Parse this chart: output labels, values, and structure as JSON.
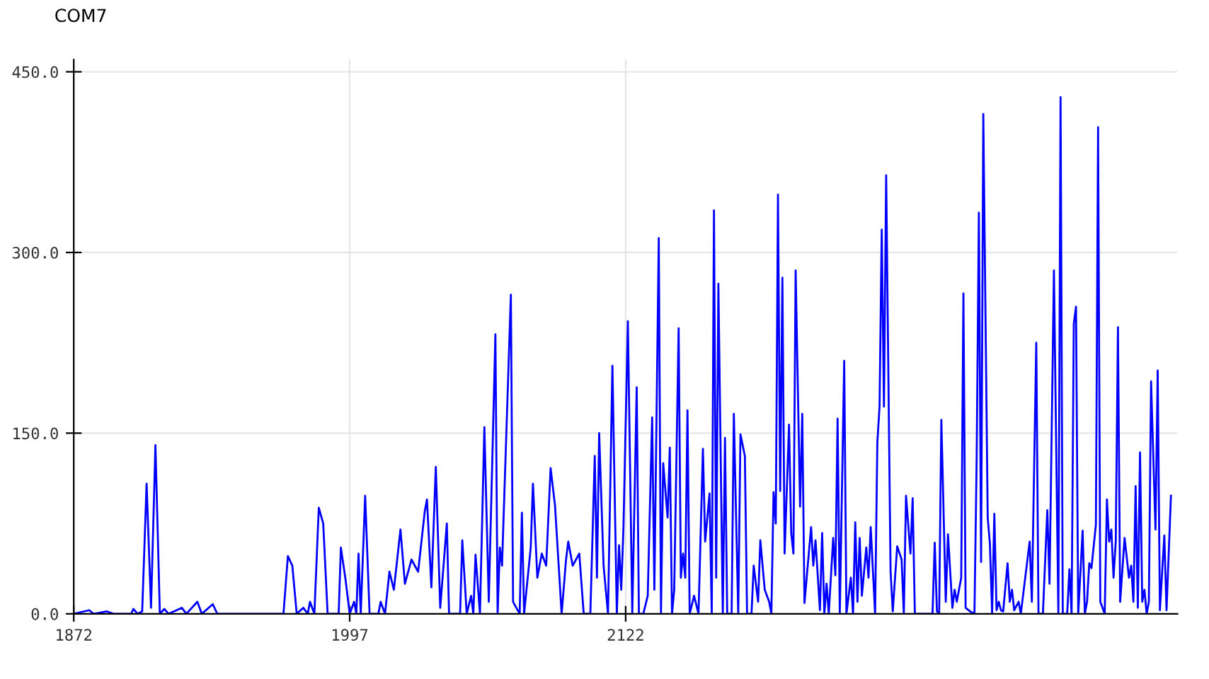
{
  "chart_data": {
    "type": "line",
    "title": "COM7",
    "xlim": [
      1872,
      2372
    ],
    "xticks": [
      1872,
      1997,
      2122
    ],
    "ylim": [
      0,
      460
    ],
    "yticks": [
      {
        "value": 0,
        "label": "0.0"
      },
      {
        "value": 150,
        "label": "150.0"
      },
      {
        "value": 300,
        "label": "300.0"
      },
      {
        "value": 450,
        "label": "450.0"
      }
    ],
    "grid": true,
    "marker": "none",
    "line_style": "solid",
    "series": [
      {
        "color": "#0000ff",
        "x": [
          1872,
          1879,
          1881,
          1887,
          1890,
          1898,
          1899,
          1901,
          1903,
          1905,
          1907,
          1909,
          1911,
          1913,
          1915,
          1921,
          1923,
          1928,
          1930,
          1935,
          1937,
          1967,
          1969,
          1971,
          1973,
          1976,
          1978,
          1979,
          1981,
          1983,
          1985,
          1987,
          1992,
          1993,
          1995,
          1997,
          1999,
          2000,
          2001,
          2002,
          2004,
          2006,
          2010,
          2011,
          2013,
          2015,
          2017,
          2020,
          2022,
          2025,
          2028,
          2031,
          2032,
          2034,
          2036,
          2038,
          2041,
          2042,
          2047,
          2048,
          2050,
          2052,
          2053,
          2054,
          2056,
          2058,
          2060,
          2063,
          2064,
          2065,
          2066,
          2070,
          2071,
          2074,
          2075,
          2076,
          2079,
          2080,
          2082,
          2084,
          2086,
          2088,
          2090,
          2093,
          2095,
          2096,
          2098,
          2101,
          2103,
          2106,
          2108,
          2109,
          2110,
          2112,
          2114,
          2116,
          2118,
          2119,
          2120,
          2121,
          2123,
          2125,
          2127,
          2128,
          2130,
          2132,
          2134,
          2135,
          2137,
          2138,
          2139,
          2141,
          2142,
          2143,
          2144,
          2146,
          2147,
          2148,
          2149,
          2150,
          2151,
          2153,
          2155,
          2157,
          2158,
          2160,
          2161,
          2162,
          2163,
          2164,
          2166,
          2167,
          2168,
          2170,
          2171,
          2173,
          2174,
          2176,
          2177,
          2179,
          2180,
          2182,
          2183,
          2185,
          2187,
          2188,
          2189,
          2190,
          2191,
          2192,
          2193,
          2194,
          2196,
          2197,
          2198,
          2199,
          2201,
          2202,
          2203,
          2206,
          2207,
          2208,
          2210,
          2211,
          2212,
          2213,
          2214,
          2216,
          2217,
          2218,
          2219,
          2221,
          2222,
          2224,
          2225,
          2226,
          2227,
          2228,
          2229,
          2231,
          2232,
          2233,
          2235,
          2236,
          2237,
          2238,
          2239,
          2240,
          2242,
          2243,
          2245,
          2247,
          2248,
          2249,
          2251,
          2252,
          2253,
          2261,
          2262,
          2263,
          2264,
          2265,
          2267,
          2268,
          2270,
          2271,
          2272,
          2274,
          2275,
          2276,
          2278,
          2280,
          2281,
          2282,
          2283,
          2284,
          2286,
          2287,
          2288,
          2289,
          2290,
          2291,
          2292,
          2293,
          2295,
          2296,
          2297,
          2298,
          2300,
          2301,
          2305,
          2306,
          2308,
          2309,
          2311,
          2313,
          2314,
          2316,
          2318,
          2319,
          2320,
          2322,
          2323,
          2324,
          2325,
          2326,
          2327,
          2329,
          2330,
          2331,
          2332,
          2333,
          2335,
          2336,
          2337,
          2339,
          2340,
          2341,
          2342,
          2343,
          2344,
          2345,
          2346,
          2348,
          2350,
          2351,
          2352,
          2353,
          2354,
          2355,
          2356,
          2357,
          2358,
          2359,
          2360,
          2362,
          2363,
          2364,
          2366,
          2367,
          2369
        ],
        "values": [
          0,
          3,
          0,
          2,
          0,
          0,
          4,
          0,
          2,
          108,
          5,
          140,
          0,
          4,
          0,
          5,
          0,
          10,
          0,
          8,
          0,
          0,
          48,
          40,
          0,
          5,
          0,
          10,
          0,
          88,
          75,
          0,
          0,
          55,
          30,
          0,
          10,
          0,
          50,
          0,
          98,
          0,
          0,
          10,
          0,
          35,
          20,
          70,
          25,
          45,
          35,
          85,
          95,
          22,
          122,
          5,
          75,
          0,
          0,
          61,
          0,
          15,
          0,
          49,
          0,
          155,
          10,
          232,
          0,
          55,
          40,
          265,
          10,
          0,
          84,
          0,
          55,
          108,
          30,
          50,
          40,
          121,
          90,
          0,
          45,
          60,
          40,
          50,
          0,
          0,
          131,
          30,
          150,
          40,
          0,
          206,
          0,
          57,
          20,
          71,
          243,
          0,
          188,
          0,
          0,
          15,
          163,
          20,
          312,
          0,
          125,
          80,
          138,
          0,
          20,
          237,
          30,
          50,
          30,
          169,
          0,
          15,
          0,
          137,
          60,
          100,
          0,
          335,
          30,
          274,
          0,
          146,
          0,
          0,
          166,
          0,
          149,
          131,
          0,
          0,
          40,
          10,
          61,
          20,
          10,
          0,
          101,
          75,
          348,
          102,
          279,
          50,
          157,
          67,
          50,
          285,
          89,
          166,
          9,
          72,
          40,
          61,
          3,
          67,
          0,
          25,
          0,
          63,
          32,
          162,
          0,
          210,
          0,
          30,
          0,
          76,
          10,
          63,
          15,
          55,
          30,
          72,
          0,
          142,
          172,
          319,
          172,
          364,
          35,
          2,
          56,
          45,
          0,
          98,
          50,
          96,
          0,
          0,
          59,
          2,
          0,
          161,
          10,
          66,
          5,
          20,
          10,
          30,
          266,
          5,
          2,
          0,
          130,
          333,
          43,
          415,
          80,
          58,
          0,
          83,
          3,
          10,
          3,
          2,
          42,
          10,
          20,
          3,
          10,
          0,
          60,
          10,
          225,
          0,
          0,
          86,
          25,
          285,
          0,
          429,
          0,
          0,
          37,
          0,
          241,
          255,
          0,
          69,
          0,
          10,
          42,
          38,
          74,
          404,
          10,
          0,
          95,
          60,
          70,
          30,
          60,
          238,
          10,
          63,
          30,
          40,
          10,
          106,
          5,
          134,
          10,
          20,
          0,
          10,
          193,
          70,
          202,
          3,
          65,
          3,
          98
        ]
      }
    ]
  }
}
